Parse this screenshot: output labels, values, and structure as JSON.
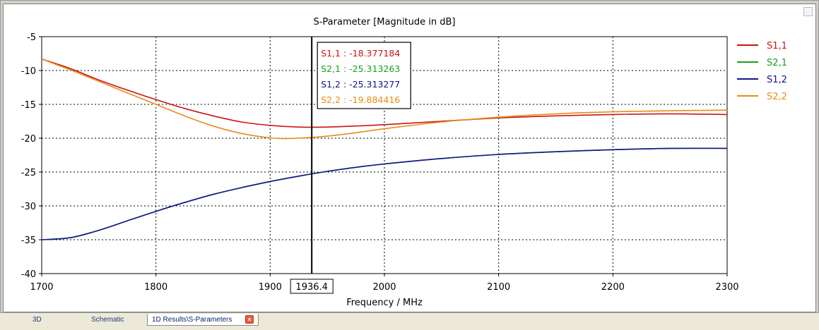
{
  "window": {
    "title": "S-Parameter [Magnitude in dB]"
  },
  "chart_data": {
    "type": "line",
    "title": "S-Parameter [Magnitude in dB]",
    "xlabel": "Frequency / MHz",
    "ylabel": "",
    "xlim": [
      1700,
      2300
    ],
    "ylim": [
      -40,
      -5
    ],
    "xticks": [
      1700,
      1800,
      1900,
      2000,
      2100,
      2200,
      2300
    ],
    "yticks": [
      -5,
      -10,
      -15,
      -20,
      -25,
      -30,
      -35,
      -40
    ],
    "grid": true,
    "legend_position": "right",
    "series": [
      {
        "name": "S1,1",
        "color": "#cc1414",
        "x": [
          1700,
          1725,
          1750,
          1775,
          1800,
          1825,
          1850,
          1875,
          1900,
          1925,
          1950,
          1975,
          2000,
          2050,
          2100,
          2150,
          2200,
          2250,
          2300
        ],
        "y": [
          -8.3,
          -9.7,
          -11.4,
          -12.9,
          -14.3,
          -15.6,
          -16.7,
          -17.6,
          -18.1,
          -18.35,
          -18.35,
          -18.2,
          -18.0,
          -17.5,
          -17.0,
          -16.7,
          -16.5,
          -16.4,
          -16.5
        ]
      },
      {
        "name": "S2,1",
        "color": "#1aa01a",
        "x": [
          1700,
          1725,
          1750,
          1775,
          1800,
          1825,
          1850,
          1875,
          1900,
          1925,
          1950,
          1975,
          2000,
          2050,
          2100,
          2150,
          2200,
          2250,
          2300
        ],
        "y": [
          -35.0,
          -34.7,
          -33.6,
          -32.2,
          -30.8,
          -29.5,
          -28.3,
          -27.3,
          -26.4,
          -25.6,
          -24.9,
          -24.3,
          -23.8,
          -23.0,
          -22.4,
          -22.0,
          -21.7,
          -21.5,
          -21.5
        ]
      },
      {
        "name": "S1,2",
        "color": "#14148c",
        "x": [
          1700,
          1725,
          1750,
          1775,
          1800,
          1825,
          1850,
          1875,
          1900,
          1925,
          1950,
          1975,
          2000,
          2050,
          2100,
          2150,
          2200,
          2250,
          2300
        ],
        "y": [
          -35.0,
          -34.7,
          -33.6,
          -32.2,
          -30.8,
          -29.5,
          -28.3,
          -27.3,
          -26.4,
          -25.6,
          -24.9,
          -24.3,
          -23.8,
          -23.0,
          -22.4,
          -22.0,
          -21.7,
          -21.5,
          -21.5
        ]
      },
      {
        "name": "S2,2",
        "color": "#e88c14",
        "x": [
          1700,
          1725,
          1750,
          1775,
          1800,
          1825,
          1850,
          1875,
          1900,
          1915,
          1936.4,
          1950,
          1975,
          2000,
          2050,
          2100,
          2150,
          2200,
          2250,
          2300
        ],
        "y": [
          -8.3,
          -9.9,
          -11.6,
          -13.3,
          -15.0,
          -16.7,
          -18.2,
          -19.3,
          -19.95,
          -20.05,
          -19.88,
          -19.7,
          -19.2,
          -18.6,
          -17.6,
          -16.9,
          -16.4,
          -16.1,
          -15.95,
          -15.85
        ]
      }
    ],
    "marker": {
      "x": 1936.4,
      "x_label": "1936.4",
      "readouts": [
        {
          "text": "S1,1 : -18.377184",
          "color": "#cc1414"
        },
        {
          "text": "S2,1 : -25.313263",
          "color": "#1aa01a"
        },
        {
          "text": "S1,2 : -25.313277",
          "color": "#14148c"
        },
        {
          "text": "S2,2 : -19.884416",
          "color": "#e88c14"
        }
      ]
    }
  },
  "tabs": [
    {
      "label": "3D",
      "active": false
    },
    {
      "label": "Schematic",
      "active": false
    },
    {
      "label": "1D Results\\S-Parameters",
      "active": true,
      "close_icon": "close-icon"
    }
  ]
}
